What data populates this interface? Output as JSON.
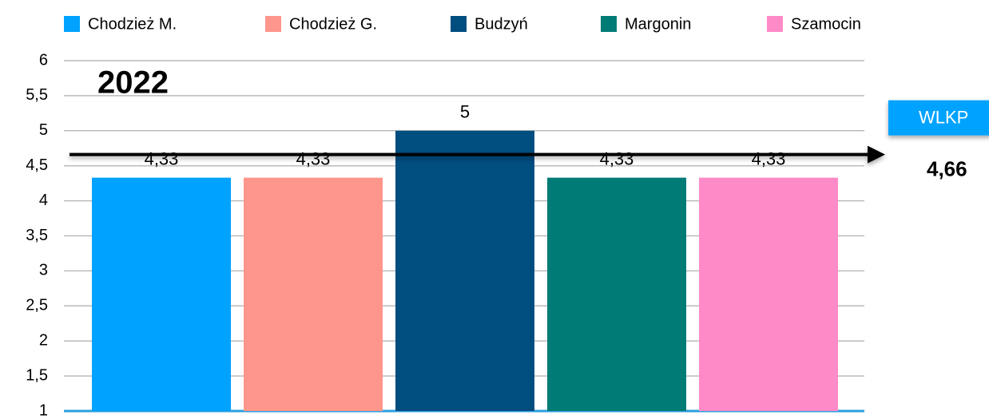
{
  "chart_data": {
    "type": "bar",
    "title": "2022",
    "categories": [
      "Chodzież M.",
      "Chodzież G.",
      "Budzyń",
      "Margonin",
      "Szamocin"
    ],
    "values": [
      4.33,
      4.33,
      5,
      4.33,
      4.33
    ],
    "value_labels": [
      "4,33",
      "4,33",
      "5",
      "4,33",
      "4,33"
    ],
    "colors": [
      "#00a2ff",
      "#ff968c",
      "#004d80",
      "#017b76",
      "#ff8ac8"
    ],
    "ylim": [
      1,
      6
    ],
    "yticks": [
      1,
      {
        "value": 1.5,
        "label": "1,5"
      },
      2,
      {
        "value": 2.5,
        "label": "2,5"
      },
      3,
      {
        "value": 3.5,
        "label": "3,5"
      },
      4,
      {
        "value": 4.5,
        "label": "4,5"
      },
      5,
      {
        "value": 5.5,
        "label": "5,5"
      },
      6
    ],
    "grid": true,
    "reference": {
      "label": "WLKP",
      "value": 4.66,
      "value_label": "4,66"
    }
  }
}
